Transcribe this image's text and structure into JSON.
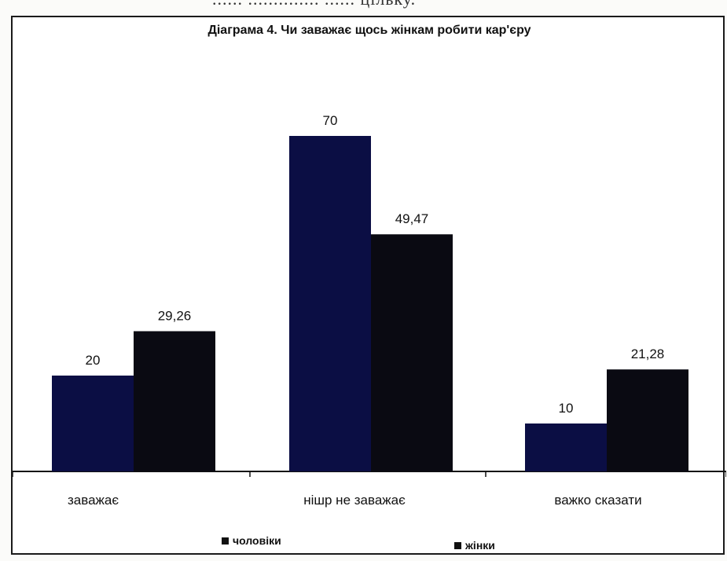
{
  "header_fragment": "...... .............. ...... цільку.",
  "chart_data": {
    "type": "bar",
    "title": "Діаграма 4. Чи заважає щось жінкам робити кар'єру",
    "categories": [
      "заважає",
      "нішр не заважає",
      "важко сказати"
    ],
    "series": [
      {
        "name": "чоловіки",
        "values": [
          20,
          70,
          10
        ],
        "labels": [
          "20",
          "70",
          "10"
        ],
        "color": "#0b0e44"
      },
      {
        "name": "жінки",
        "values": [
          29.26,
          49.47,
          21.28
        ],
        "labels": [
          "29,26",
          "49,47",
          "21,28"
        ],
        "color": "#0a0a12"
      }
    ],
    "ylim": [
      0,
      80
    ],
    "grid": false,
    "legend_position": "bottom"
  }
}
